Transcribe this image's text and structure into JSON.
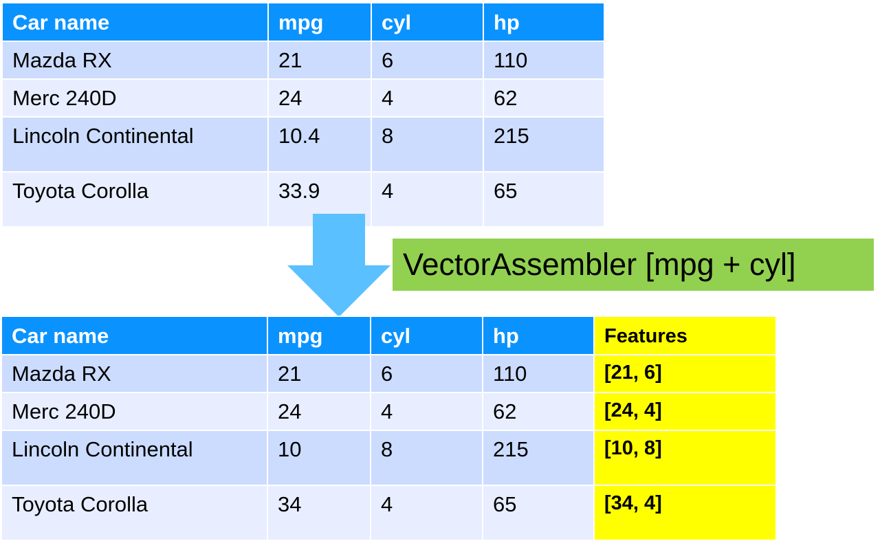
{
  "top_table": {
    "headers": [
      "Car name",
      "mpg",
      "cyl",
      "hp"
    ],
    "rows": [
      [
        "Mazda RX",
        "21",
        "6",
        "110"
      ],
      [
        "Merc 240D",
        "24",
        "4",
        "62"
      ],
      [
        "Lincoln Continental",
        "10.4",
        "8",
        "215"
      ],
      [
        "Toyota Corolla",
        "33.9",
        "4",
        "65"
      ]
    ]
  },
  "transform_label": "VectorAssembler [mpg + cyl]",
  "bottom_table": {
    "headers": [
      "Car name",
      "mpg",
      "cyl",
      "hp",
      "Features"
    ],
    "rows": [
      [
        "Mazda RX",
        "21",
        "6",
        "110",
        "[21, 6]"
      ],
      [
        "Merc 240D",
        "24",
        "4",
        "62",
        "[24, 4]"
      ],
      [
        "Lincoln Continental",
        "10",
        "8",
        "215",
        "[10, 8]"
      ],
      [
        "Toyota Corolla",
        "34",
        "4",
        "65",
        "[34, 4]"
      ]
    ]
  },
  "colors": {
    "header_blue": "#0a93ff",
    "row_dark": "#ccdcff",
    "row_light": "#e8eeff",
    "features_yellow": "#ffff00",
    "label_green": "#92d050",
    "arrow_blue": "#5bc0ff"
  },
  "icons": {
    "arrow": "down-arrow-icon"
  }
}
